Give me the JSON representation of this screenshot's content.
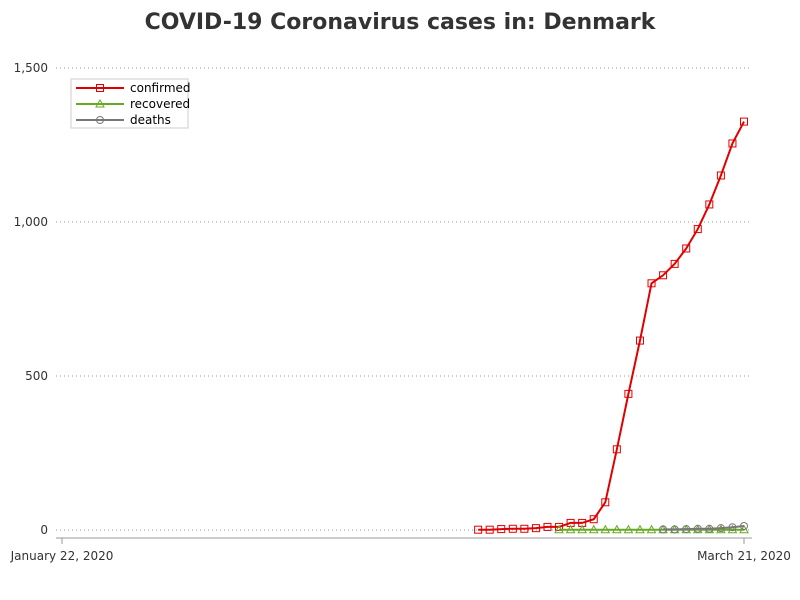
{
  "chart_data": {
    "type": "line",
    "title": "COVID-19 Coronavirus cases in: Denmark",
    "xlabel": "",
    "ylabel": "",
    "x_range": [
      "2020-01-22",
      "2020-03-21"
    ],
    "x_tick_labels": [
      "January 22, 2020",
      "March 21, 2020"
    ],
    "ylim": [
      0,
      1500
    ],
    "y_ticks": [
      0,
      500,
      1000,
      1500
    ],
    "y_tick_labels": [
      "0",
      "500",
      "1,000",
      "1,500"
    ],
    "grid": "horizontal dotted",
    "legend_position": "top-left",
    "series": [
      {
        "name": "confirmed",
        "color": "#e00000",
        "marker": "square",
        "points": [
          [
            "2020-02-27",
            1
          ],
          [
            "2020-02-28",
            1
          ],
          [
            "2020-02-29",
            3
          ],
          [
            "2020-03-01",
            4
          ],
          [
            "2020-03-02",
            4
          ],
          [
            "2020-03-03",
            6
          ],
          [
            "2020-03-04",
            10
          ],
          [
            "2020-03-05",
            10
          ],
          [
            "2020-03-06",
            23
          ],
          [
            "2020-03-07",
            23
          ],
          [
            "2020-03-08",
            35
          ],
          [
            "2020-03-09",
            90
          ],
          [
            "2020-03-10",
            262
          ],
          [
            "2020-03-11",
            442
          ],
          [
            "2020-03-12",
            615
          ],
          [
            "2020-03-13",
            801
          ],
          [
            "2020-03-14",
            827
          ],
          [
            "2020-03-15",
            864
          ],
          [
            "2020-03-16",
            914
          ],
          [
            "2020-03-17",
            977
          ],
          [
            "2020-03-18",
            1057
          ],
          [
            "2020-03-19",
            1151
          ],
          [
            "2020-03-20",
            1255
          ],
          [
            "2020-03-21",
            1326
          ]
        ]
      },
      {
        "name": "recovered",
        "color": "#66aa22",
        "marker": "triangle",
        "points": [
          [
            "2020-03-05",
            1
          ],
          [
            "2020-03-06",
            1
          ],
          [
            "2020-03-07",
            1
          ],
          [
            "2020-03-08",
            1
          ],
          [
            "2020-03-09",
            1
          ],
          [
            "2020-03-10",
            1
          ],
          [
            "2020-03-11",
            1
          ],
          [
            "2020-03-12",
            1
          ],
          [
            "2020-03-13",
            1
          ],
          [
            "2020-03-14",
            1
          ],
          [
            "2020-03-15",
            1
          ],
          [
            "2020-03-16",
            1
          ],
          [
            "2020-03-17",
            1
          ],
          [
            "2020-03-18",
            1
          ],
          [
            "2020-03-19",
            1
          ],
          [
            "2020-03-20",
            1
          ],
          [
            "2020-03-21",
            1
          ]
        ]
      },
      {
        "name": "deaths",
        "color": "#777777",
        "marker": "circle",
        "points": [
          [
            "2020-03-14",
            2
          ],
          [
            "2020-03-15",
            2
          ],
          [
            "2020-03-16",
            3
          ],
          [
            "2020-03-17",
            4
          ],
          [
            "2020-03-18",
            4
          ],
          [
            "2020-03-19",
            6
          ],
          [
            "2020-03-20",
            9
          ],
          [
            "2020-03-21",
            13
          ]
        ]
      }
    ]
  }
}
